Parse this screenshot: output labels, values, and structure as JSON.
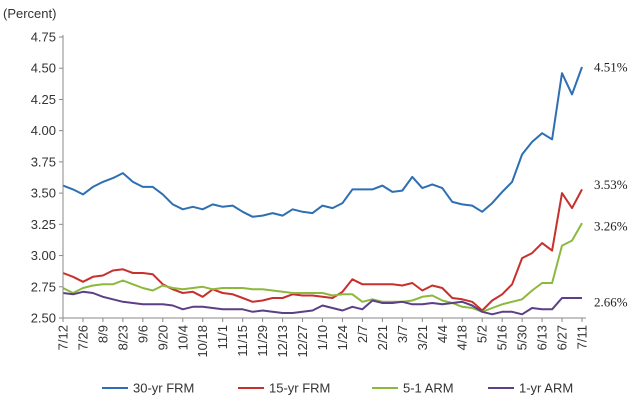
{
  "chart_data": {
    "type": "line",
    "ylabel": "(Percent)",
    "ylim": [
      2.5,
      4.75
    ],
    "yticks": [
      "4.75",
      "4.50",
      "4.25",
      "4.00",
      "3.75",
      "3.50",
      "3.25",
      "3.00",
      "2.75",
      "2.50"
    ],
    "ytick_values": [
      4.75,
      4.5,
      4.25,
      4.0,
      3.75,
      3.5,
      3.25,
      3.0,
      2.75,
      2.5
    ],
    "grid": false,
    "legend": "bottom",
    "x_tick_labels": [
      "7/12",
      "7/26",
      "8/9",
      "8/23",
      "9/6",
      "9/20",
      "10/4",
      "10/18",
      "11/1",
      "11/15",
      "11/29",
      "12/13",
      "12/27",
      "1/10",
      "1/24",
      "2/7",
      "2/21",
      "3/7",
      "3/21",
      "4/4",
      "4/18",
      "5/2",
      "5/16",
      "5/30",
      "6/13",
      "6/27",
      "7/11"
    ],
    "x_tick_positions": [
      0,
      2,
      4,
      6,
      8,
      10,
      12,
      14,
      16,
      18,
      20,
      22,
      24,
      26,
      28,
      30,
      32,
      34,
      36,
      38,
      40,
      42,
      44,
      46,
      48,
      50,
      52
    ],
    "series": [
      {
        "name": "30-yr FRM",
        "color": "#2e6fb4",
        "end_label": "4.51%",
        "values": [
          3.56,
          3.53,
          3.49,
          3.55,
          3.59,
          3.62,
          3.66,
          3.59,
          3.55,
          3.55,
          3.49,
          3.41,
          3.37,
          3.39,
          3.37,
          3.41,
          3.39,
          3.4,
          3.35,
          3.31,
          3.32,
          3.34,
          3.32,
          3.37,
          3.35,
          3.34,
          3.4,
          3.38,
          3.42,
          3.53,
          3.53,
          3.53,
          3.56,
          3.51,
          3.52,
          3.63,
          3.54,
          3.57,
          3.54,
          3.43,
          3.41,
          3.4,
          3.35,
          3.42,
          3.51,
          3.59,
          3.81,
          3.91,
          3.98,
          3.93,
          4.46,
          4.29,
          4.51
        ]
      },
      {
        "name": "15-yr FRM",
        "color": "#c8302c",
        "end_label": "3.53%",
        "values": [
          2.86,
          2.83,
          2.79,
          2.83,
          2.84,
          2.88,
          2.89,
          2.86,
          2.86,
          2.85,
          2.77,
          2.73,
          2.7,
          2.71,
          2.67,
          2.73,
          2.7,
          2.69,
          2.66,
          2.63,
          2.64,
          2.66,
          2.66,
          2.69,
          2.68,
          2.68,
          2.67,
          2.66,
          2.71,
          2.81,
          2.77,
          2.77,
          2.77,
          2.77,
          2.76,
          2.78,
          2.72,
          2.76,
          2.74,
          2.66,
          2.65,
          2.63,
          2.56,
          2.64,
          2.69,
          2.77,
          2.98,
          3.02,
          3.1,
          3.04,
          3.5,
          3.38,
          3.53
        ]
      },
      {
        "name": "5-1 ARM",
        "color": "#8db83e",
        "end_label": "3.26%",
        "values": [
          2.74,
          2.7,
          2.74,
          2.76,
          2.77,
          2.77,
          2.8,
          2.77,
          2.74,
          2.72,
          2.76,
          2.74,
          2.73,
          2.74,
          2.75,
          2.73,
          2.74,
          2.74,
          2.74,
          2.73,
          2.73,
          2.72,
          2.71,
          2.7,
          2.7,
          2.7,
          2.7,
          2.68,
          2.69,
          2.69,
          2.63,
          2.65,
          2.63,
          2.63,
          2.63,
          2.64,
          2.67,
          2.68,
          2.64,
          2.62,
          2.59,
          2.58,
          2.55,
          2.58,
          2.61,
          2.63,
          2.65,
          2.72,
          2.78,
          2.78,
          3.08,
          3.12,
          3.26
        ]
      },
      {
        "name": "1-yr ARM",
        "color": "#5c3f86",
        "end_label": "2.66%",
        "values": [
          2.7,
          2.69,
          2.71,
          2.7,
          2.67,
          2.65,
          2.63,
          2.62,
          2.61,
          2.61,
          2.61,
          2.6,
          2.57,
          2.59,
          2.59,
          2.58,
          2.57,
          2.57,
          2.57,
          2.55,
          2.56,
          2.55,
          2.54,
          2.54,
          2.55,
          2.56,
          2.6,
          2.58,
          2.56,
          2.59,
          2.57,
          2.64,
          2.62,
          2.62,
          2.63,
          2.61,
          2.61,
          2.62,
          2.61,
          2.62,
          2.63,
          2.6,
          2.55,
          2.53,
          2.55,
          2.55,
          2.53,
          2.58,
          2.57,
          2.57,
          2.66,
          2.66,
          2.66
        ]
      }
    ]
  }
}
